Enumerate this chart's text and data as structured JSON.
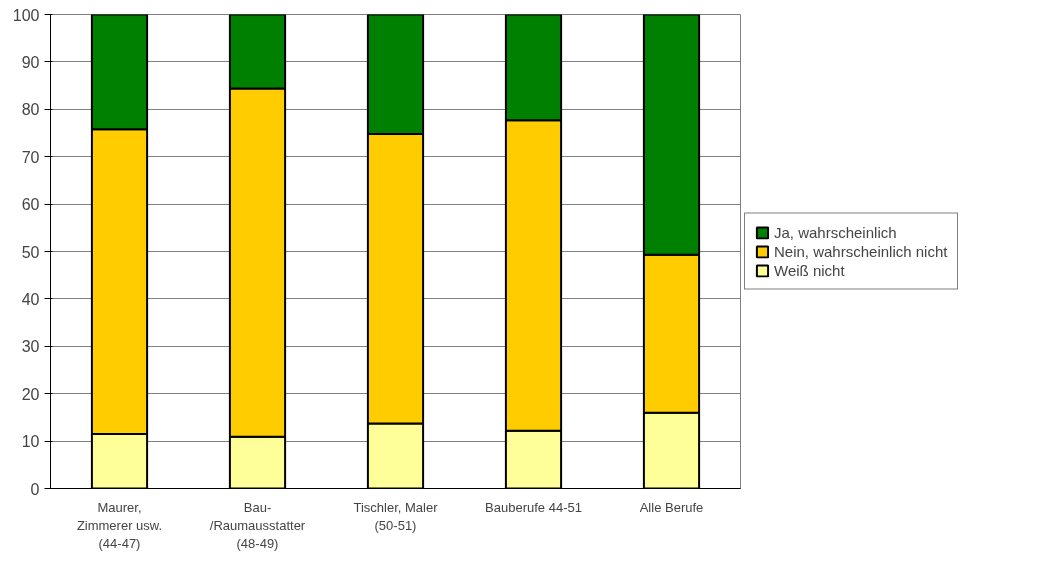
{
  "chart_data": {
    "type": "bar",
    "stacked": true,
    "categories": [
      "Maurer,\nZimmerer usw.\n(44-47)",
      "Bau-\n/Raumausstatter\n(48-49)",
      "Tischler, Maler\n(50-51)",
      "Bauberufe 44-51",
      "Alle Berufe"
    ],
    "series": [
      {
        "name": "Weiß nicht",
        "color": "#ffff99",
        "values": [
          11.5,
          10.9,
          13.7,
          12.2,
          16.0
        ]
      },
      {
        "name": "Nein, wahrscheinlich nicht",
        "color": "#ffcc00",
        "values": [
          64.3,
          73.5,
          61.1,
          65.5,
          33.3
        ]
      },
      {
        "name": "Ja, wahrscheinlich",
        "color": "#008000",
        "values": [
          24.2,
          15.6,
          25.2,
          22.3,
          50.7
        ]
      }
    ],
    "ylim": [
      0,
      100
    ],
    "yticks": [
      0,
      10,
      20,
      30,
      40,
      50,
      60,
      70,
      80,
      90,
      100
    ],
    "grid": "y",
    "legend": "right"
  }
}
